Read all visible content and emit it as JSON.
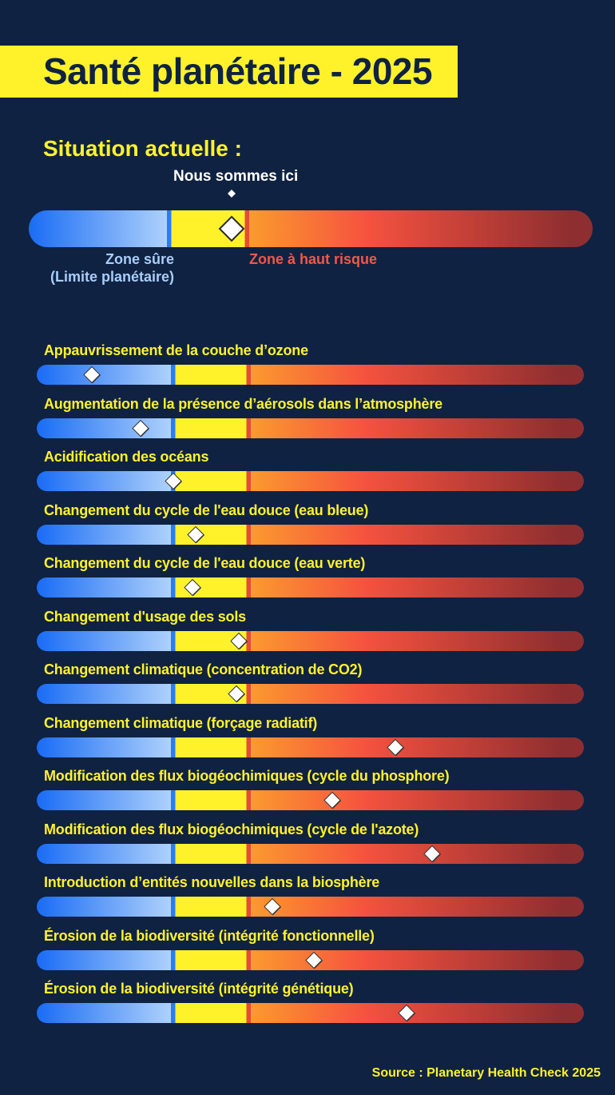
{
  "title": "Santé planétaire - 2025",
  "subtitle": "Situation actuelle :",
  "here_label": "Nous sommes ici",
  "zones": {
    "safe": "Zone sûre",
    "safe_sub": "(Limite planétaire)",
    "risk": "Zone à haut risque"
  },
  "scale": {
    "current_position": 0.36,
    "safe_limit": 0.249,
    "high_risk_limit": 0.387
  },
  "boundaries": [
    {
      "label": "Appauvrissement de la couche d’ozone",
      "position": 0.1
    },
    {
      "label": "Augmentation de la présence d’aérosols dans l’atmosphère",
      "position": 0.19
    },
    {
      "label": "Acidification des océans",
      "position": 0.25
    },
    {
      "label": "Changement du cycle de l'eau douce (eau bleue)",
      "position": 0.29
    },
    {
      "label": "Changement du cycle de l'eau douce (eau verte)",
      "position": 0.285
    },
    {
      "label": "Changement d'usage des sols",
      "position": 0.37
    },
    {
      "label": "Changement climatique (concentration de CO2)",
      "position": 0.365
    },
    {
      "label": "Changement climatique (forçage radiatif)",
      "position": 0.655
    },
    {
      "label": "Modification des flux biogéochimiques (cycle du phosphore)",
      "position": 0.54
    },
    {
      "label": "Modification des flux biogéochimiques (cycle de l'azote)",
      "position": 0.723
    },
    {
      "label": "Introduction d’entités nouvelles dans la biosphère",
      "position": 0.43
    },
    {
      "label": "Érosion de la biodiversité (intégrité fonctionnelle)",
      "position": 0.506
    },
    {
      "label": "Érosion de la biodiversité (intégrité génétique)",
      "position": 0.676
    }
  ],
  "source": "Source : Planetary Health Check 2025",
  "colors": {
    "background": "#0f2241",
    "accent_yellow": "#fff22b",
    "safe_blue": "#1a6cf5",
    "risk_red": "#f5523f"
  }
}
